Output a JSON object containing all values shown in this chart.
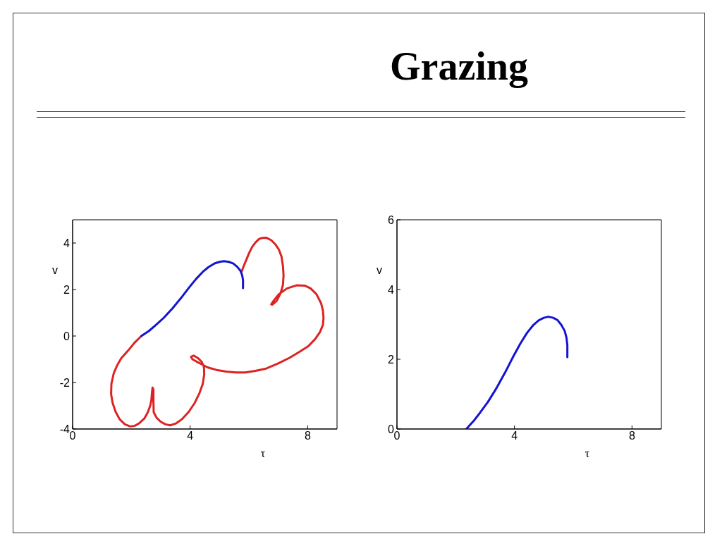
{
  "chart_data": [
    {
      "type": "line",
      "xlabel": "τ",
      "ylabel": "v",
      "xlim": [
        0,
        9
      ],
      "ylim": [
        -4,
        5
      ],
      "xticks": [
        0,
        4,
        8
      ],
      "yticks": [
        -4,
        -2,
        0,
        2,
        4
      ],
      "series": [
        {
          "color": "#dc2323",
          "x": [
            2.34,
            2.1,
            1.88,
            1.66,
            1.52,
            1.4,
            1.32,
            1.31,
            1.36,
            1.46,
            1.6,
            1.78,
            1.96,
            2.12,
            2.28,
            2.44,
            2.56,
            2.64,
            2.68,
            2.7,
            2.72,
            2.75,
            2.75,
            2.76,
            2.86,
            3.0,
            3.16,
            3.32,
            3.52,
            3.72,
            3.96,
            4.16,
            4.32,
            4.43,
            4.48,
            4.47,
            4.4,
            4.28,
            4.12,
            4.03,
            4.08,
            4.22,
            4.4,
            4.59,
            4.9,
            5.23,
            5.56,
            5.87,
            6.22,
            6.59,
            7.0,
            7.38,
            7.72,
            8.02,
            8.25,
            8.42,
            8.52,
            8.54,
            8.52,
            8.46,
            8.3,
            8.1,
            7.9,
            7.62,
            7.3,
            7.02,
            6.86,
            6.76,
            6.8,
            6.95,
            7.08,
            7.16,
            7.18,
            7.16,
            7.11,
            7.02,
            6.91,
            6.76,
            6.59,
            6.45,
            6.35,
            6.22,
            6.11,
            6.0,
            5.91,
            5.82,
            5.75
          ],
          "values": [
            0.0,
            -0.3,
            -0.64,
            -0.95,
            -1.25,
            -1.6,
            -2.06,
            -2.5,
            -2.87,
            -3.25,
            -3.58,
            -3.8,
            -3.89,
            -3.86,
            -3.74,
            -3.55,
            -3.28,
            -3.0,
            -2.77,
            -2.45,
            -2.22,
            -2.3,
            -2.8,
            -3.28,
            -3.52,
            -3.69,
            -3.8,
            -3.84,
            -3.76,
            -3.58,
            -3.25,
            -2.87,
            -2.45,
            -2.06,
            -1.65,
            -1.35,
            -1.12,
            -0.96,
            -0.84,
            -0.9,
            -1.0,
            -1.1,
            -1.22,
            -1.35,
            -1.46,
            -1.53,
            -1.57,
            -1.57,
            -1.5,
            -1.4,
            -1.18,
            -0.94,
            -0.68,
            -0.44,
            -0.14,
            0.17,
            0.48,
            0.78,
            1.1,
            1.4,
            1.8,
            2.05,
            2.17,
            2.18,
            2.05,
            1.8,
            1.55,
            1.36,
            1.35,
            1.52,
            1.85,
            2.2,
            2.61,
            3.0,
            3.42,
            3.72,
            3.93,
            4.12,
            4.23,
            4.22,
            4.18,
            4.02,
            3.83,
            3.55,
            3.27,
            3.0,
            2.76
          ]
        },
        {
          "color": "#1414d2",
          "x": [
            2.34,
            2.6,
            2.84,
            3.1,
            3.4,
            3.68,
            3.96,
            4.2,
            4.43,
            4.63,
            4.83,
            5.0,
            5.15,
            5.32,
            5.47,
            5.6,
            5.71,
            5.77,
            5.8,
            5.8,
            5.8
          ],
          "values": [
            0.0,
            0.22,
            0.48,
            0.78,
            1.19,
            1.62,
            2.08,
            2.45,
            2.76,
            2.97,
            3.12,
            3.19,
            3.22,
            3.19,
            3.12,
            2.98,
            2.81,
            2.62,
            2.4,
            2.2,
            2.06
          ]
        }
      ]
    },
    {
      "type": "line",
      "title": "Grazing",
      "xlabel": "τ",
      "ylabel": "v",
      "xlim": [
        0,
        9
      ],
      "ylim": [
        0,
        6
      ],
      "xticks": [
        0,
        4,
        8
      ],
      "yticks": [
        0,
        2,
        4,
        6
      ],
      "series": [
        {
          "color": "#1414d2",
          "x": [
            2.36,
            2.6,
            2.84,
            3.1,
            3.4,
            3.68,
            3.96,
            4.2,
            4.43,
            4.63,
            4.83,
            5.0,
            5.15,
            5.32,
            5.47,
            5.6,
            5.71,
            5.77,
            5.8,
            5.8,
            5.8
          ],
          "values": [
            0.0,
            0.22,
            0.48,
            0.78,
            1.19,
            1.62,
            2.08,
            2.45,
            2.76,
            2.97,
            3.12,
            3.19,
            3.22,
            3.19,
            3.12,
            2.98,
            2.81,
            2.62,
            2.4,
            2.2,
            2.06
          ]
        }
      ]
    }
  ]
}
